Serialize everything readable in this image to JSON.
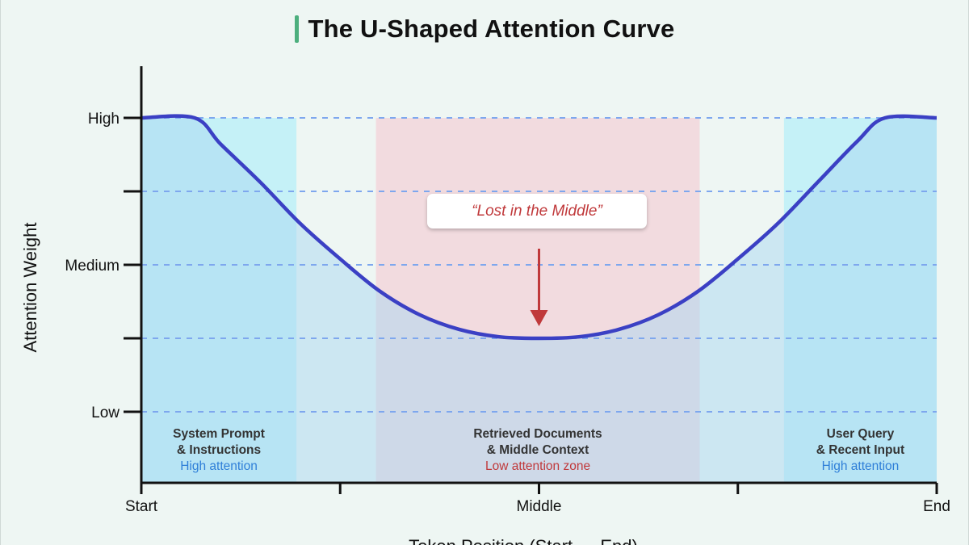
{
  "chart_data": {
    "type": "area",
    "title": "The U-Shaped Attention Curve",
    "xlabel": "Token Position (Start → End)",
    "ylabel": "Attention Weight",
    "x_ticks": [
      {
        "label": "Start",
        "x": 0
      },
      {
        "label": "",
        "x": 0.25
      },
      {
        "label": "Middle",
        "x": 0.5
      },
      {
        "label": "",
        "x": 0.75
      },
      {
        "label": "End",
        "x": 1
      }
    ],
    "y_ticks": [
      {
        "label": "Low",
        "y": 0
      },
      {
        "label": "",
        "y": 0.25
      },
      {
        "label": "Medium",
        "y": 0.5
      },
      {
        "label": "",
        "y": 0.75
      },
      {
        "label": "High",
        "y": 1
      }
    ],
    "xlim": [
      0,
      1
    ],
    "ylim": [
      -0.23,
      1.2
    ],
    "grid": "horizontal dashed",
    "series": [
      {
        "x": [
          0,
          0.067,
          0.1,
          0.15,
          0.2,
          0.25,
          0.3,
          0.35,
          0.4,
          0.45,
          0.5,
          0.55,
          0.6,
          0.65,
          0.7,
          0.75,
          0.8,
          0.85,
          0.9,
          0.935,
          1
        ],
        "values": [
          1,
          1,
          0.91,
          0.78,
          0.64,
          0.52,
          0.41,
          0.33,
          0.28,
          0.255,
          0.25,
          0.255,
          0.28,
          0.33,
          0.41,
          0.52,
          0.64,
          0.78,
          0.92,
          1,
          1
        ]
      }
    ],
    "regions": [
      {
        "x": [
          0,
          0.195
        ],
        "color": "#bdf0f7",
        "label1": "System Prompt",
        "label2": "& Instructions",
        "note": "High attention",
        "note_color": "#2f7fd8"
      },
      {
        "x": [
          0.295,
          0.702
        ],
        "color": "#f2d6da",
        "label1": "Retrieved Documents",
        "label2": "& Middle Context",
        "note": "Low attention zone",
        "note_color": "#c0393b"
      },
      {
        "x": [
          0.808,
          1
        ],
        "color": "#bdf0f7",
        "label1": "User Query",
        "label2": "& Recent Input",
        "note": "High attention",
        "note_color": "#2f7fd8"
      }
    ],
    "annotation": {
      "text": "“Lost in the Middle”",
      "x": 0.5,
      "y": 0.25,
      "color": "#c0393b"
    },
    "colors": {
      "line": "#3b40c4",
      "fill": "#a9d8f2",
      "grid": "#7ea7ee",
      "axis": "#111111"
    }
  }
}
